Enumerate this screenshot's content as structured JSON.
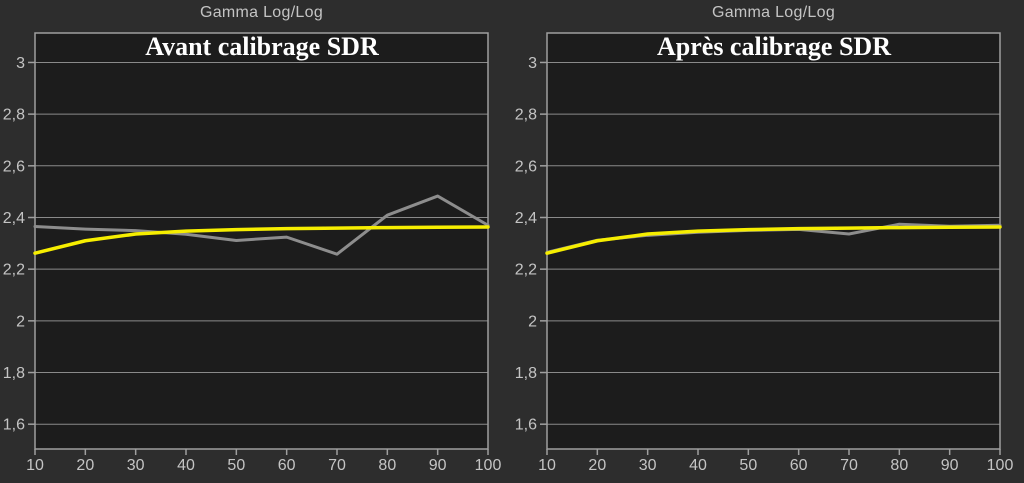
{
  "page": {
    "background": "#2d2d2d",
    "plot_background": "#1c1c1c",
    "grid_color": "#8a8a8a",
    "border_color": "#9f9f9f",
    "tick_label_color": "#c4c4c4",
    "header_color": "#c4c4c4",
    "title_color": "#ffffff"
  },
  "chart_data": [
    {
      "type": "line",
      "header": "Gamma Log/Log",
      "title": "Avant calibrage SDR",
      "x": [
        10,
        20,
        30,
        40,
        50,
        60,
        70,
        80,
        90,
        100
      ],
      "xlim": [
        10,
        100
      ],
      "ylim": [
        1.504,
        3.114
      ],
      "xticks": {
        "values": [
          10,
          20,
          30,
          40,
          50,
          60,
          70,
          80,
          90,
          100
        ],
        "labels": [
          "10",
          "20",
          "30",
          "40",
          "50",
          "60",
          "70",
          "80",
          "90",
          "100"
        ]
      },
      "yticks": {
        "values": [
          3.0,
          2.8,
          2.6,
          2.4,
          2.2,
          2.0,
          1.8,
          1.6
        ],
        "labels": [
          "3",
          "2,8",
          "2,6",
          "2,4",
          "2,2",
          "2",
          "1,8",
          "1,6"
        ]
      },
      "grid": "horizontal",
      "legend": "none",
      "series": [
        {
          "name": "gamma-mesure",
          "color": "#8d8d8d",
          "width": 3,
          "values": [
            2.365,
            2.355,
            2.349,
            2.335,
            2.311,
            2.324,
            2.258,
            2.409,
            2.483,
            2.37
          ]
        },
        {
          "name": "gamma-reference",
          "color": "#f6ee00",
          "width": 3.5,
          "values": [
            2.262,
            2.31,
            2.336,
            2.347,
            2.353,
            2.357,
            2.359,
            2.361,
            2.362,
            2.363
          ]
        }
      ]
    },
    {
      "type": "line",
      "header": "Gamma Log/Log",
      "title": "Après calibrage SDR",
      "x": [
        10,
        20,
        30,
        40,
        50,
        60,
        70,
        80,
        90,
        100
      ],
      "xlim": [
        10,
        100
      ],
      "ylim": [
        1.504,
        3.114
      ],
      "xticks": {
        "values": [
          10,
          20,
          30,
          40,
          50,
          60,
          70,
          80,
          90,
          100
        ],
        "labels": [
          "10",
          "20",
          "30",
          "40",
          "50",
          "60",
          "70",
          "80",
          "90",
          "100"
        ]
      },
      "yticks": {
        "values": [
          3.0,
          2.8,
          2.6,
          2.4,
          2.2,
          2.0,
          1.8,
          1.6
        ],
        "labels": [
          "3",
          "2,8",
          "2,6",
          "2,4",
          "2,2",
          "2",
          "1,8",
          "1,6"
        ]
      },
      "grid": "horizontal",
      "legend": "none",
      "series": [
        {
          "name": "gamma-mesure",
          "color": "#8d8d8d",
          "width": 3,
          "values": [
            2.265,
            2.312,
            2.331,
            2.343,
            2.35,
            2.354,
            2.336,
            2.374,
            2.366,
            2.37
          ]
        },
        {
          "name": "gamma-reference",
          "color": "#f6ee00",
          "width": 3.5,
          "values": [
            2.262,
            2.31,
            2.336,
            2.347,
            2.353,
            2.357,
            2.359,
            2.361,
            2.362,
            2.363
          ]
        }
      ]
    }
  ]
}
